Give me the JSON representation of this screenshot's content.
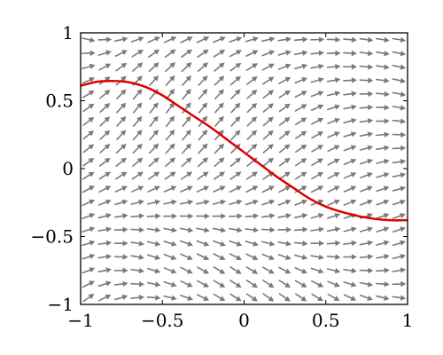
{
  "chart_data": {
    "type": "line",
    "title": "",
    "xlabel": "",
    "ylabel": "",
    "xlim": [
      -1,
      1
    ],
    "ylim": [
      -1,
      1
    ],
    "grid": false,
    "x_ticks": [
      -1,
      -0.5,
      0,
      0.5,
      1
    ],
    "y_ticks": [
      -1,
      -0.5,
      0,
      0.5,
      1
    ],
    "x_tick_labels": [
      "−1",
      "−0.5",
      "0",
      "0.5",
      "1"
    ],
    "y_tick_labels": [
      "−1",
      "−0.5",
      "0",
      "0.5",
      "1"
    ],
    "colors": {
      "curve": "#e00000",
      "arrows": "#7a7a7a",
      "axes": "#000000"
    },
    "slope_field": {
      "x_values": [
        -0.95,
        -0.85,
        -0.75,
        -0.65,
        -0.55,
        -0.45,
        -0.35,
        -0.25,
        -0.15,
        -0.05,
        0.05,
        0.15,
        0.25,
        0.35,
        0.45,
        0.55,
        0.65,
        0.75,
        0.85,
        0.95
      ],
      "y_values": [
        -0.95,
        -0.85,
        -0.75,
        -0.65,
        -0.55,
        -0.45,
        -0.35,
        -0.25,
        -0.15,
        -0.05,
        0.05,
        0.15,
        0.25,
        0.35,
        0.45,
        0.55,
        0.65,
        0.75,
        0.85,
        0.95
      ],
      "slope_grid": [
        [
          0.84,
          0.59,
          0.35,
          0.12,
          -0.09,
          -0.28,
          -0.44,
          -0.59,
          -0.7,
          -0.78,
          -0.83,
          -0.85,
          -0.85,
          -0.81,
          -0.75,
          -0.67,
          -0.56,
          -0.44,
          -0.3,
          -0.16
        ],
        [
          0.62,
          0.38,
          0.15,
          -0.06,
          -0.25,
          -0.41,
          -0.55,
          -0.66,
          -0.74,
          -0.79,
          -0.82,
          -0.81,
          -0.77,
          -0.7,
          -0.61,
          -0.5,
          -0.37,
          -0.23,
          -0.09,
          0.04
        ],
        [
          0.47,
          0.23,
          0.01,
          -0.18,
          -0.35,
          -0.49,
          -0.59,
          -0.67,
          -0.72,
          -0.74,
          -0.72,
          -0.68,
          -0.61,
          -0.52,
          -0.41,
          -0.29,
          -0.16,
          -0.03,
          0.09,
          0.19
        ],
        [
          0.39,
          0.16,
          -0.04,
          -0.21,
          -0.36,
          -0.47,
          -0.55,
          -0.6,
          -0.62,
          -0.61,
          -0.57,
          -0.51,
          -0.43,
          -0.33,
          -0.22,
          -0.11,
          0.01,
          0.12,
          0.21,
          0.29
        ],
        [
          0.37,
          0.16,
          -0.02,
          -0.17,
          -0.29,
          -0.37,
          -0.43,
          -0.45,
          -0.45,
          -0.42,
          -0.37,
          -0.3,
          -0.21,
          -0.12,
          -0.02,
          0.08,
          0.17,
          0.25,
          0.32,
          0.37
        ],
        [
          0.39,
          0.21,
          0.06,
          -0.06,
          -0.15,
          -0.21,
          -0.24,
          -0.25,
          -0.23,
          -0.19,
          -0.13,
          -0.06,
          0.02,
          0.1,
          0.18,
          0.25,
          0.31,
          0.36,
          0.39,
          0.41
        ],
        [
          0.45,
          0.31,
          0.19,
          0.1,
          0.04,
          0.0,
          -0.02,
          -0.02,
          0.01,
          0.05,
          0.11,
          0.17,
          0.23,
          0.29,
          0.34,
          0.38,
          0.41,
          0.42,
          0.42,
          0.42
        ],
        [
          0.54,
          0.45,
          0.37,
          0.31,
          0.27,
          0.25,
          0.25,
          0.26,
          0.29,
          0.33,
          0.37,
          0.41,
          0.45,
          0.48,
          0.5,
          0.5,
          0.49,
          0.46,
          0.43,
          0.39
        ],
        [
          0.65,
          0.61,
          0.57,
          0.55,
          0.53,
          0.53,
          0.53,
          0.55,
          0.57,
          0.59,
          0.61,
          0.62,
          0.63,
          0.63,
          0.61,
          0.58,
          0.54,
          0.48,
          0.41,
          0.33
        ],
        [
          0.76,
          0.77,
          0.78,
          0.79,
          0.8,
          0.81,
          0.82,
          0.83,
          0.84,
          0.84,
          0.83,
          0.81,
          0.78,
          0.74,
          0.68,
          0.61,
          0.53,
          0.45,
          0.35,
          0.25
        ],
        [
          0.86,
          0.93,
          0.98,
          1.02,
          1.05,
          1.07,
          1.08,
          1.08,
          1.07,
          1.04,
          1.0,
          0.95,
          0.88,
          0.8,
          0.71,
          0.61,
          0.5,
          0.39,
          0.27,
          0.16
        ],
        [
          0.92,
          1.05,
          1.15,
          1.21,
          1.25,
          1.28,
          1.28,
          1.26,
          1.23,
          1.18,
          1.11,
          1.03,
          0.93,
          0.82,
          0.7,
          0.58,
          0.45,
          0.32,
          0.19,
          0.06
        ],
        [
          0.95,
          1.13,
          1.26,
          1.35,
          1.4,
          1.43,
          1.42,
          1.39,
          1.34,
          1.26,
          1.17,
          1.06,
          0.94,
          0.81,
          0.67,
          0.53,
          0.38,
          0.24,
          0.1,
          -0.04
        ],
        [
          0.93,
          1.15,
          1.31,
          1.42,
          1.48,
          1.51,
          1.5,
          1.46,
          1.39,
          1.3,
          1.18,
          1.05,
          0.91,
          0.76,
          0.61,
          0.46,
          0.31,
          0.16,
          0.02,
          -0.12
        ],
        [
          0.86,
          1.12,
          1.3,
          1.42,
          1.49,
          1.52,
          1.51,
          1.46,
          1.38,
          1.28,
          1.15,
          1.01,
          0.86,
          0.7,
          0.54,
          0.38,
          0.23,
          0.08,
          -0.06,
          -0.19
        ],
        [
          0.74,
          1.02,
          1.22,
          1.35,
          1.43,
          1.46,
          1.44,
          1.39,
          1.31,
          1.2,
          1.07,
          0.92,
          0.77,
          0.61,
          0.45,
          0.3,
          0.15,
          0.01,
          -0.11,
          -0.23
        ],
        [
          0.56,
          0.86,
          1.07,
          1.21,
          1.29,
          1.32,
          1.31,
          1.26,
          1.17,
          1.06,
          0.93,
          0.79,
          0.64,
          0.49,
          0.34,
          0.2,
          0.06,
          -0.06,
          -0.16,
          -0.25
        ],
        [
          0.33,
          0.64,
          0.86,
          1.01,
          1.09,
          1.12,
          1.11,
          1.06,
          0.98,
          0.88,
          0.76,
          0.63,
          0.49,
          0.36,
          0.23,
          0.1,
          -0.01,
          -0.11,
          -0.19,
          -0.25
        ],
        [
          0.05,
          0.36,
          0.59,
          0.74,
          0.83,
          0.87,
          0.86,
          0.82,
          0.75,
          0.66,
          0.56,
          0.45,
          0.34,
          0.22,
          0.12,
          0.02,
          -0.07,
          -0.14,
          -0.2,
          -0.23
        ],
        [
          -0.27,
          0.04,
          0.27,
          0.43,
          0.52,
          0.56,
          0.57,
          0.55,
          0.5,
          0.43,
          0.35,
          0.27,
          0.18,
          0.1,
          0.02,
          -0.05,
          -0.1,
          -0.15,
          -0.18,
          -0.19
        ]
      ]
    },
    "series": [
      {
        "x": [
          -1.0,
          -0.9,
          -0.8,
          -0.7,
          -0.6,
          -0.5,
          -0.4,
          -0.3,
          -0.2,
          -0.1,
          0.0,
          0.1,
          0.2,
          0.3,
          0.4,
          0.5,
          0.6,
          0.7,
          0.8,
          0.9,
          1.0
        ],
        "y": [
          0.61,
          0.64,
          0.645,
          0.635,
          0.6,
          0.54,
          0.46,
          0.38,
          0.3,
          0.21,
          0.12,
          0.03,
          -0.06,
          -0.14,
          -0.22,
          -0.28,
          -0.32,
          -0.35,
          -0.37,
          -0.38,
          -0.38
        ]
      }
    ]
  }
}
